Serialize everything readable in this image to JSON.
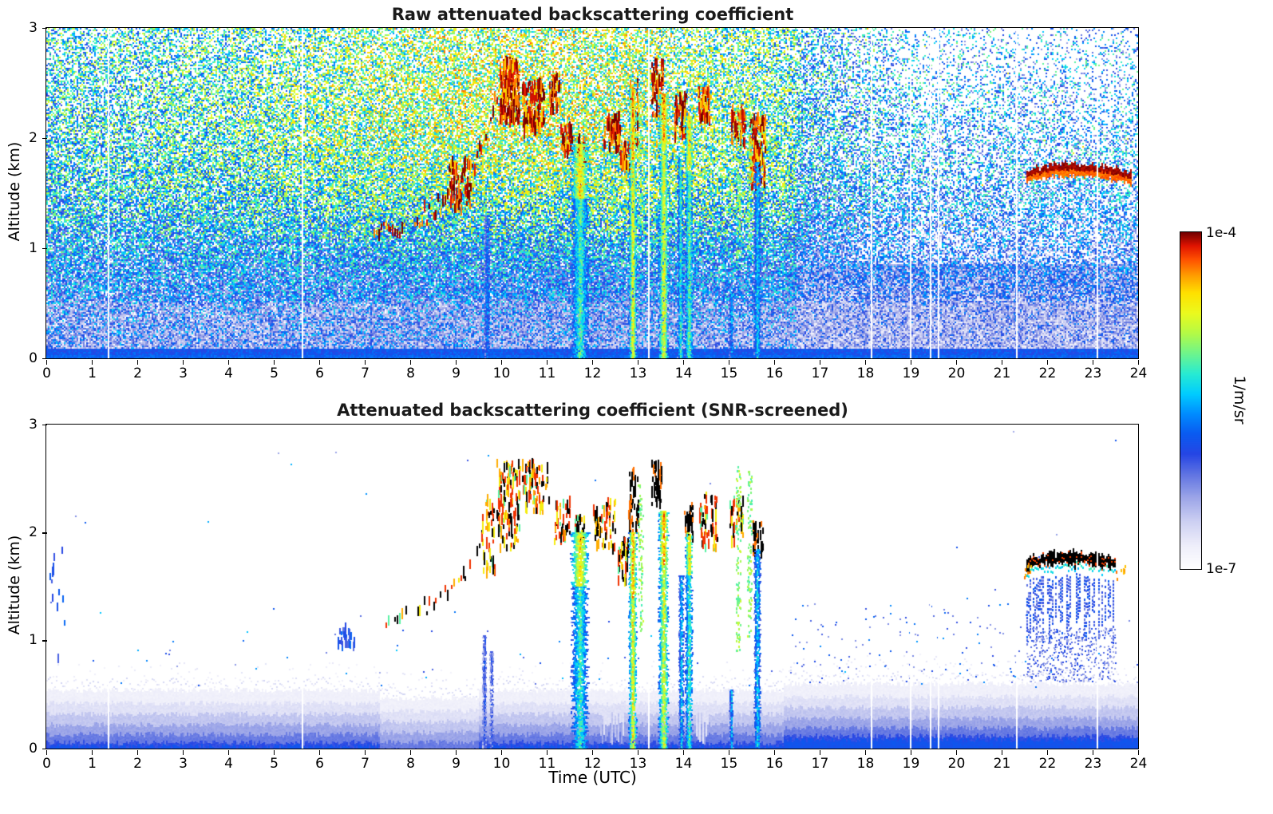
{
  "figure": {
    "xlabel": "Time (UTC)"
  },
  "colorbar": {
    "max_label": "1e-4",
    "min_label": "1e-7",
    "units": "1/m/sr",
    "scale": "log"
  },
  "chart_data": [
    {
      "type": "heatmap",
      "title": "Raw attenuated backscattering coefficient",
      "xlabel": "",
      "ylabel": "Altitude (km)",
      "xlim": [
        0,
        24
      ],
      "ylim": [
        0,
        3
      ],
      "xticks": [
        0,
        1,
        2,
        3,
        4,
        5,
        6,
        7,
        8,
        9,
        10,
        11,
        12,
        13,
        14,
        15,
        16,
        17,
        18,
        19,
        20,
        21,
        22,
        23,
        24
      ],
      "yticks": [
        0,
        1,
        2,
        3
      ],
      "colorbar_min": "1e-7",
      "colorbar_max": "1e-4",
      "units": "1/m/sr",
      "seed": 987123,
      "noise": {
        "p0": 0.97,
        "alt_falloff": 0.17,
        "mid_center": 10.5,
        "mid_sigma": 4.5,
        "mid_boost": 0.08,
        "right_start": 16.3,
        "right_drop": 0.15,
        "base0": 0.28,
        "base_alt_gain": 0.24,
        "mid_value_gain": 0.17,
        "spread": 0.46
      },
      "surface_band": {
        "alt_top": 0.08,
        "value": 0.33
      },
      "gap_columns": [
        1.35,
        5.62,
        13.22,
        18.12,
        18.98,
        19.42,
        19.6,
        21.32,
        23.08
      ],
      "cloud_track": {
        "points": [
          [
            7.2,
            1.1
          ],
          [
            7.7,
            1.2
          ],
          [
            8.2,
            1.3
          ],
          [
            8.7,
            1.42
          ],
          [
            9.1,
            1.55
          ],
          [
            9.4,
            1.75
          ],
          [
            9.65,
            2.0
          ],
          [
            9.9,
            2.35
          ],
          [
            10.12,
            2.55
          ]
        ],
        "density": 0.85,
        "scatter": 0.2,
        "palette": "fire_raw"
      },
      "dash_clusters": [
        {
          "t": [
            9.95,
            10.38
          ],
          "alt": [
            2.15,
            2.7
          ],
          "n": 220,
          "palette": "fire_raw"
        },
        {
          "t": [
            10.45,
            10.95
          ],
          "alt": [
            2.05,
            2.5
          ],
          "n": 120,
          "palette": "fire_raw"
        },
        {
          "t": [
            11.05,
            11.3
          ],
          "alt": [
            2.25,
            2.55
          ],
          "n": 45,
          "palette": "fire_raw"
        },
        {
          "t": [
            11.3,
            11.55
          ],
          "alt": [
            1.85,
            2.1
          ],
          "n": 45,
          "palette": "fire_raw"
        },
        {
          "t": [
            11.6,
            11.85
          ],
          "alt": [
            1.5,
            2.0
          ],
          "n": 60,
          "palette": "fire_raw"
        },
        {
          "t": [
            12.25,
            12.6
          ],
          "alt": [
            1.9,
            2.2
          ],
          "n": 60,
          "palette": "fire_raw"
        },
        {
          "t": [
            12.6,
            12.85
          ],
          "alt": [
            1.7,
            1.95
          ],
          "n": 45,
          "palette": "fire_raw"
        },
        {
          "t": [
            12.82,
            13.0
          ],
          "alt": [
            1.9,
            2.5
          ],
          "n": 45,
          "palette": "fire_raw"
        },
        {
          "t": [
            13.3,
            13.55
          ],
          "alt": [
            2.2,
            2.7
          ],
          "n": 70,
          "palette": "fire_raw"
        },
        {
          "t": [
            13.8,
            14.05
          ],
          "alt": [
            2.0,
            2.4
          ],
          "n": 60,
          "palette": "fire_raw"
        },
        {
          "t": [
            14.3,
            14.6
          ],
          "alt": [
            2.15,
            2.45
          ],
          "n": 45,
          "palette": "fire_raw"
        },
        {
          "t": [
            15.05,
            15.35
          ],
          "alt": [
            1.95,
            2.3
          ],
          "n": 55,
          "palette": "fire_raw"
        },
        {
          "t": [
            15.45,
            15.8
          ],
          "alt": [
            1.55,
            2.2
          ],
          "n": 130,
          "palette": "fire_raw"
        },
        {
          "t": [
            8.85,
            9.35
          ],
          "alt": [
            1.35,
            1.8
          ],
          "n": 70,
          "palette": "fire_raw"
        }
      ],
      "rain_columns": [
        {
          "t": 9.68,
          "w": 0.1,
          "segs": [
            [
              1.3,
              0,
              0.45
            ]
          ]
        },
        {
          "t": 11.72,
          "w": 0.3,
          "segs": [
            [
              1.95,
              1.45,
              0.82
            ],
            [
              1.45,
              0,
              0.62
            ]
          ]
        },
        {
          "t": 12.88,
          "w": 0.13,
          "segs": [
            [
              2.45,
              1.8,
              0.9
            ],
            [
              1.8,
              0,
              0.8
            ]
          ]
        },
        {
          "t": 13.56,
          "w": 0.17,
          "segs": [
            [
              2.4,
              1.95,
              0.9
            ],
            [
              1.95,
              0,
              0.78
            ]
          ]
        },
        {
          "t": 13.93,
          "w": 0.1,
          "segs": [
            [
              1.8,
              0,
              0.6
            ]
          ]
        },
        {
          "t": 14.12,
          "w": 0.14,
          "segs": [
            [
              2.2,
              1.7,
              0.86
            ],
            [
              1.7,
              0,
              0.66
            ]
          ]
        },
        {
          "t": 15.05,
          "w": 0.08,
          "segs": [
            [
              0.6,
              0,
              0.5
            ]
          ]
        },
        {
          "t": 15.62,
          "w": 0.12,
          "segs": [
            [
              1.78,
              0,
              0.55
            ]
          ]
        }
      ],
      "green_columns": [
        {
          "t": 13.05,
          "alt": [
            1.1,
            2.4
          ],
          "n": 60
        },
        {
          "t": 15.2,
          "alt": [
            0.9,
            2.6
          ],
          "n": 80
        },
        {
          "t": 15.45,
          "alt": [
            1.0,
            2.5
          ],
          "n": 70
        }
      ],
      "cloud_layer": {
        "t": [
          21.55,
          23.85
        ],
        "alt": 1.66,
        "wave": 0.06,
        "thick": 0.11,
        "value": 0.96,
        "cyan_fringe": true
      }
    },
    {
      "type": "heatmap",
      "title": "Attenuated backscattering coefficient (SNR-screened)",
      "xlabel": "Time (UTC)",
      "ylabel": "Altitude (km)",
      "xlim": [
        0,
        24
      ],
      "ylim": [
        0,
        3
      ],
      "xticks": [
        0,
        1,
        2,
        3,
        4,
        5,
        6,
        7,
        8,
        9,
        10,
        11,
        12,
        13,
        14,
        15,
        16,
        17,
        18,
        19,
        20,
        21,
        22,
        23,
        24
      ],
      "yticks": [
        0,
        1,
        2,
        3
      ],
      "colorbar_min": "1e-7",
      "colorbar_max": "1e-4",
      "units": "1/m/sr",
      "seed": 24681,
      "bands": [
        [
          0.54,
          0.06
        ],
        [
          0.42,
          0.1
        ],
        [
          0.32,
          0.155
        ],
        [
          0.22,
          0.21
        ],
        [
          0.13,
          0.27
        ],
        [
          0.055,
          0.33
        ],
        [
          0.022,
          0.38
        ]
      ],
      "band_mods": {
        "right_start": 16.2,
        "right_boost": 0.06,
        "low_t": [
          7.3,
          9.5
        ],
        "low_drop": 0.07,
        "white_windows": [
          [
            12.15,
            12.7
          ],
          [
            14.25,
            14.55
          ]
        ]
      },
      "gap_columns": [
        1.35,
        5.62,
        13.22,
        18.12,
        18.98,
        19.42,
        19.6,
        21.32,
        23.08
      ],
      "cloud_track": {
        "points": [
          [
            7.45,
            1.1
          ],
          [
            7.9,
            1.22
          ],
          [
            8.35,
            1.33
          ],
          [
            8.8,
            1.45
          ],
          [
            9.15,
            1.6
          ],
          [
            9.45,
            1.85
          ],
          [
            9.7,
            2.1
          ],
          [
            9.95,
            2.4
          ],
          [
            10.1,
            2.52
          ]
        ],
        "density": 0.5,
        "scatter": 0.16,
        "palette": "fire_screened"
      },
      "dash_clusters": [
        {
          "t": [
            9.9,
            10.4
          ],
          "alt": [
            1.85,
            2.65
          ],
          "n": 130,
          "palette": "fire_screened"
        },
        {
          "t": [
            10.45,
            11.05
          ],
          "alt": [
            2.2,
            2.65
          ],
          "n": 80,
          "palette": "fire_screened"
        },
        {
          "t": [
            11.15,
            11.5
          ],
          "alt": [
            1.9,
            2.3
          ],
          "n": 45,
          "palette": "fire_screened"
        },
        {
          "t": [
            11.6,
            11.85
          ],
          "alt": [
            1.9,
            2.15
          ],
          "n": 35,
          "palette": "fire_screened"
        },
        {
          "t": [
            12.0,
            12.5
          ],
          "alt": [
            1.85,
            2.3
          ],
          "n": 55,
          "palette": "fire_screened"
        },
        {
          "t": [
            12.55,
            12.8
          ],
          "alt": [
            1.55,
            1.95
          ],
          "n": 40,
          "palette": "fire_screened"
        },
        {
          "t": [
            12.78,
            13.0
          ],
          "alt": [
            2.0,
            2.6
          ],
          "n": 45,
          "palette": "black_mix"
        },
        {
          "t": [
            13.3,
            13.52
          ],
          "alt": [
            2.25,
            2.65
          ],
          "n": 40,
          "palette": "black_mix"
        },
        {
          "t": [
            14.0,
            14.2
          ],
          "alt": [
            1.95,
            2.25
          ],
          "n": 28,
          "palette": "black_mix"
        },
        {
          "t": [
            14.35,
            14.75
          ],
          "alt": [
            1.85,
            2.35
          ],
          "n": 60,
          "palette": "fire_screened"
        },
        {
          "t": [
            15.0,
            15.3
          ],
          "alt": [
            1.9,
            2.3
          ],
          "n": 40,
          "palette": "fire_screened"
        },
        {
          "t": [
            15.52,
            15.75
          ],
          "alt": [
            1.8,
            2.1
          ],
          "n": 30,
          "palette": "black_mix"
        },
        {
          "t": [
            9.55,
            9.85
          ],
          "alt": [
            1.6,
            2.3
          ],
          "n": 40,
          "palette": "fire_screened"
        },
        {
          "t": [
            6.4,
            6.75
          ],
          "alt": [
            0.93,
            1.12
          ],
          "n": 26,
          "palette": "blue"
        },
        {
          "t": [
            0.05,
            0.4
          ],
          "alt": [
            0.8,
            2.05
          ],
          "n": 12,
          "palette": "blue"
        }
      ],
      "rain_columns": [
        {
          "t": 9.62,
          "w": 0.07,
          "segs": [
            [
              1.05,
              0,
              0.35
            ]
          ]
        },
        {
          "t": 9.78,
          "w": 0.06,
          "segs": [
            [
              0.9,
              0,
              0.33
            ]
          ]
        },
        {
          "t": 11.72,
          "w": 0.3,
          "segs": [
            [
              2.0,
              1.5,
              0.82
            ],
            [
              1.5,
              0,
              0.6
            ]
          ]
        },
        {
          "t": 12.88,
          "w": 0.13,
          "segs": [
            [
              2.0,
              1.4,
              0.88
            ],
            [
              1.4,
              0,
              0.8
            ]
          ]
        },
        {
          "t": 13.56,
          "w": 0.17,
          "segs": [
            [
              2.2,
              1.7,
              0.88
            ],
            [
              1.7,
              0,
              0.76
            ]
          ]
        },
        {
          "t": 13.95,
          "w": 0.08,
          "segs": [
            [
              1.6,
              0,
              0.55
            ]
          ]
        },
        {
          "t": 14.12,
          "w": 0.13,
          "segs": [
            [
              2.0,
              1.6,
              0.84
            ],
            [
              1.6,
              0,
              0.62
            ]
          ]
        },
        {
          "t": 15.05,
          "w": 0.07,
          "segs": [
            [
              0.55,
              0,
              0.5
            ]
          ]
        },
        {
          "t": 15.62,
          "w": 0.11,
          "segs": [
            [
              1.85,
              0,
              0.55
            ]
          ]
        }
      ],
      "green_columns": [
        {
          "t": 13.05,
          "alt": [
            1.1,
            2.45
          ],
          "n": 90
        },
        {
          "t": 15.2,
          "alt": [
            0.9,
            2.65
          ],
          "n": 110
        },
        {
          "t": 15.45,
          "alt": [
            1.0,
            2.6
          ],
          "n": 90
        }
      ],
      "sparse_dots": {
        "n": 450,
        "alt": [
          0.55,
          3.0
        ],
        "boost_region": {
          "t": [
            16.3,
            21.6
          ],
          "alt": [
            0.6,
            1.35
          ],
          "n": 120
        }
      },
      "cloud_block": {
        "t": [
          21.55,
          23.5
        ],
        "top_alt": 1.72,
        "wave": 0.05,
        "black_thick": 0.1,
        "plume_bottom": 0.95,
        "speckle_n": 500,
        "edge_orange": true
      }
    }
  ]
}
